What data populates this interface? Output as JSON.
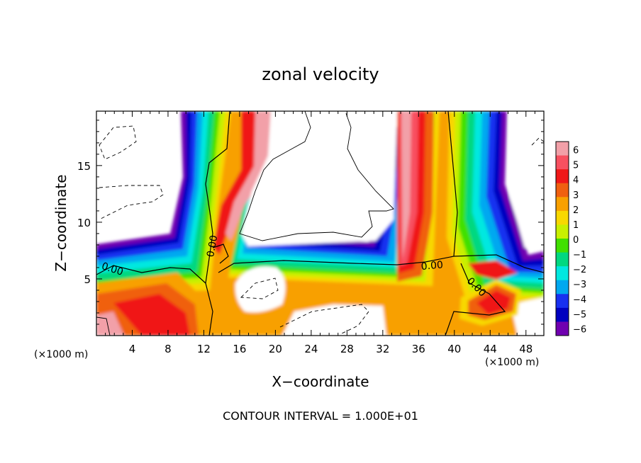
{
  "chart_data": {
    "type": "heatmap",
    "title": "zonal velocity",
    "xlabel": "X−coordinate",
    "ylabel": "Z−coordinate",
    "x_unit": "(×1000 m)",
    "x_unit_right": "(×1000 m)",
    "xlim": [
      0,
      50
    ],
    "ylim": [
      0,
      19.8
    ],
    "x_ticks": [
      4,
      8,
      12,
      16,
      20,
      24,
      28,
      32,
      36,
      40,
      44,
      48
    ],
    "y_ticks": [
      5,
      10,
      15
    ],
    "caption": "CONTOUR INTERVAL = 1.000E+01",
    "colorbar": {
      "labels": [
        "6",
        "5",
        "4",
        "3",
        "2",
        "1",
        "0",
        "−1",
        "−2",
        "−3",
        "−4",
        "−5",
        "−6"
      ],
      "colors": [
        "#f2a0a8",
        "#f85060",
        "#f01818",
        "#f06010",
        "#f8a000",
        "#f8d800",
        "#c8f000",
        "#40e000",
        "#00d880",
        "#00e8e0",
        "#00a8f0",
        "#1830f0",
        "#0000c0",
        "#7000b0"
      ]
    },
    "contour_labels": [
      {
        "text": "0.00",
        "x": 1.8,
        "y": 5.9,
        "angle": 18
      },
      {
        "text": "0.00",
        "x": 12.9,
        "y": 7.9,
        "angle": -80
      },
      {
        "text": "0.00",
        "x": 37.5,
        "y": 6.2,
        "angle": -5
      },
      {
        "text": "0.00",
        "x": 42.5,
        "y": 4.3,
        "angle": 45
      }
    ]
  }
}
